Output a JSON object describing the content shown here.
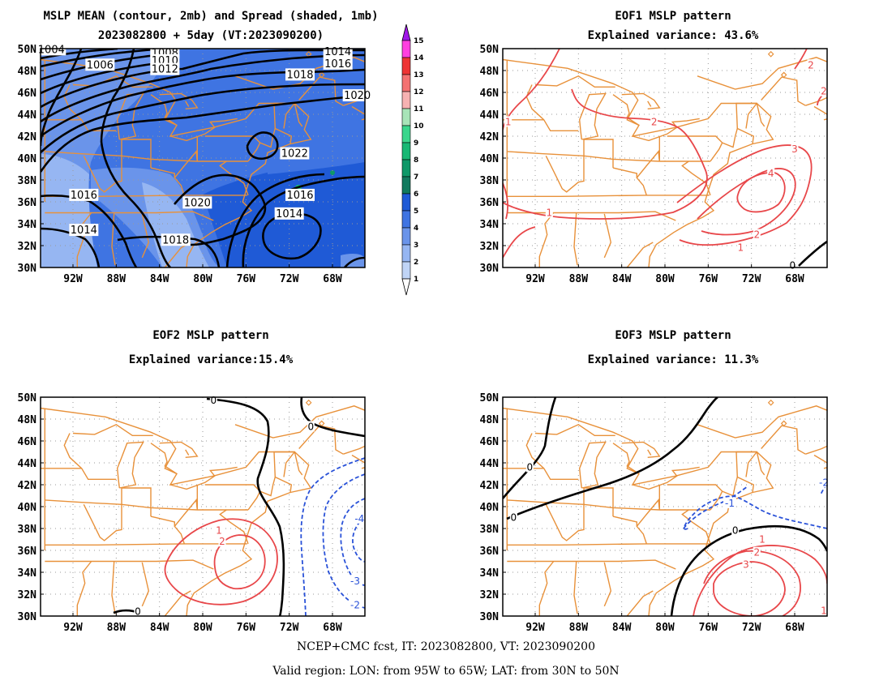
{
  "lat_labels": [
    "30N",
    "32N",
    "34N",
    "36N",
    "38N",
    "40N",
    "42N",
    "44N",
    "46N",
    "48N",
    "50N"
  ],
  "lon_labels": [
    "92W",
    "88W",
    "84W",
    "80W",
    "76W",
    "72W",
    "68W"
  ],
  "lon_values": [
    -92,
    -88,
    -84,
    -80,
    -76,
    -72,
    -68
  ],
  "lat_values": [
    30,
    32,
    34,
    36,
    38,
    40,
    42,
    44,
    46,
    48,
    50
  ],
  "extent": {
    "lon_min": -95,
    "lon_max": -65,
    "lat_min": 30,
    "lat_max": 50
  },
  "colors": {
    "land": "#e8913a",
    "positive": "#e8474a",
    "negative": "#2a52d8",
    "zero": "#000000",
    "grid": "#9a9a9a"
  },
  "panels": {
    "mean": {
      "title": "MSLP MEAN (contour, 2mb) and Spread (shaded, 1mb)",
      "subtitle": "2023082800 + 5day (VT:2023090200)",
      "contour_labels": [
        {
          "text": "1004",
          "lon": -94.0,
          "lat": 49.9
        },
        {
          "text": "1006",
          "lon": -89.5,
          "lat": 48.5
        },
        {
          "text": "1008",
          "lon": -83.5,
          "lat": 49.6
        },
        {
          "text": "1010",
          "lon": -83.5,
          "lat": 48.9
        },
        {
          "text": "1012",
          "lon": -83.5,
          "lat": 48.1
        },
        {
          "text": "1014",
          "lon": -67.5,
          "lat": 49.7
        },
        {
          "text": "1016",
          "lon": -67.5,
          "lat": 48.6
        },
        {
          "text": "1018",
          "lon": -71.0,
          "lat": 47.6
        },
        {
          "text": "1020",
          "lon": -65.7,
          "lat": 45.7
        },
        {
          "text": "1022",
          "lon": -71.5,
          "lat": 40.4
        },
        {
          "text": "1016",
          "lon": -71.0,
          "lat": 36.6
        },
        {
          "text": "1014",
          "lon": -72.0,
          "lat": 34.9
        },
        {
          "text": "1016",
          "lon": -91.0,
          "lat": 36.6
        },
        {
          "text": "1014",
          "lon": -91.0,
          "lat": 33.4
        },
        {
          "text": "1020",
          "lon": -80.5,
          "lat": 35.9
        },
        {
          "text": "1018",
          "lon": -82.5,
          "lat": 32.5
        }
      ],
      "colorbar": {
        "labels": [
          "1",
          "2",
          "3",
          "4",
          "5",
          "6",
          "7",
          "8",
          "9",
          "10",
          "11",
          "12",
          "13",
          "14",
          "15"
        ],
        "colors": [
          "#c0d4f6",
          "#96b6f2",
          "#6a94ea",
          "#3f74e2",
          "#1f5ad6",
          "#127a5e",
          "#0e9868",
          "#18b874",
          "#3ad68c",
          "#a8e4b8",
          "#f6b2b2",
          "#f47272",
          "#ee3434",
          "#ff40e0",
          "#a018e8"
        ]
      }
    },
    "eof1": {
      "title": "EOF1 MSLP pattern",
      "subtitle": "Explained variance: 43.6%",
      "contour_labels": [
        {
          "text": "2",
          "lon": -66.5,
          "lat": 48.5,
          "sign": "positive"
        },
        {
          "text": "2",
          "lon": -65.3,
          "lat": 46.1,
          "sign": "positive"
        },
        {
          "text": "2",
          "lon": -81.0,
          "lat": 43.3,
          "sign": "positive"
        },
        {
          "text": "1",
          "lon": -94.5,
          "lat": 43.3,
          "sign": "positive"
        },
        {
          "text": "3",
          "lon": -68.0,
          "lat": 40.8,
          "sign": "positive"
        },
        {
          "text": "4",
          "lon": -70.2,
          "lat": 38.6,
          "sign": "positive"
        },
        {
          "text": "1",
          "lon": -90.7,
          "lat": 35.0,
          "sign": "positive"
        },
        {
          "text": "2",
          "lon": -71.5,
          "lat": 33.0,
          "sign": "positive"
        },
        {
          "text": "1",
          "lon": -73.0,
          "lat": 31.8,
          "sign": "positive"
        },
        {
          "text": "0",
          "lon": -68.2,
          "lat": 30.2,
          "sign": "zero"
        }
      ]
    },
    "eof2": {
      "title": "EOF2 MSLP pattern",
      "subtitle": "Explained variance:15.4%",
      "contour_labels": [
        {
          "text": "0",
          "lon": -79.0,
          "lat": 49.7,
          "sign": "zero"
        },
        {
          "text": "0",
          "lon": -70.0,
          "lat": 47.3,
          "sign": "zero"
        },
        {
          "text": "1",
          "lon": -78.5,
          "lat": 37.8,
          "sign": "positive"
        },
        {
          "text": "2",
          "lon": -78.2,
          "lat": 36.8,
          "sign": "positive"
        },
        {
          "text": "-4",
          "lon": -65.5,
          "lat": 38.9,
          "sign": "negative"
        },
        {
          "text": "-3",
          "lon": -65.9,
          "lat": 33.2,
          "sign": "negative"
        },
        {
          "text": "-2",
          "lon": -65.9,
          "lat": 31.0,
          "sign": "negative"
        },
        {
          "text": "0",
          "lon": -86.0,
          "lat": 30.4,
          "sign": "zero"
        }
      ]
    },
    "eof3": {
      "title": "EOF3 MSLP pattern",
      "subtitle": "Explained variance: 11.3%",
      "contour_labels": [
        {
          "text": "0",
          "lon": -92.5,
          "lat": 43.6,
          "sign": "zero"
        },
        {
          "text": "0",
          "lon": -94.0,
          "lat": 39.0,
          "sign": "zero"
        },
        {
          "text": "-2",
          "lon": -65.3,
          "lat": 42.2,
          "sign": "negative"
        },
        {
          "text": "-1",
          "lon": -74.0,
          "lat": 40.3,
          "sign": "negative"
        },
        {
          "text": "0",
          "lon": -73.5,
          "lat": 37.8,
          "sign": "zero"
        },
        {
          "text": "1",
          "lon": -71.0,
          "lat": 37.0,
          "sign": "positive"
        },
        {
          "text": "2",
          "lon": -71.5,
          "lat": 35.8,
          "sign": "positive"
        },
        {
          "text": "3",
          "lon": -72.5,
          "lat": 34.7,
          "sign": "positive"
        },
        {
          "text": "1",
          "lon": -65.3,
          "lat": 30.5,
          "sign": "positive"
        }
      ]
    }
  },
  "footer": {
    "line1": "NCEP+CMC fcst, IT: 2023082800, VT: 2023090200",
    "line2": "Valid region: LON: from 95W to 65W; LAT: from 30N to 50N"
  }
}
